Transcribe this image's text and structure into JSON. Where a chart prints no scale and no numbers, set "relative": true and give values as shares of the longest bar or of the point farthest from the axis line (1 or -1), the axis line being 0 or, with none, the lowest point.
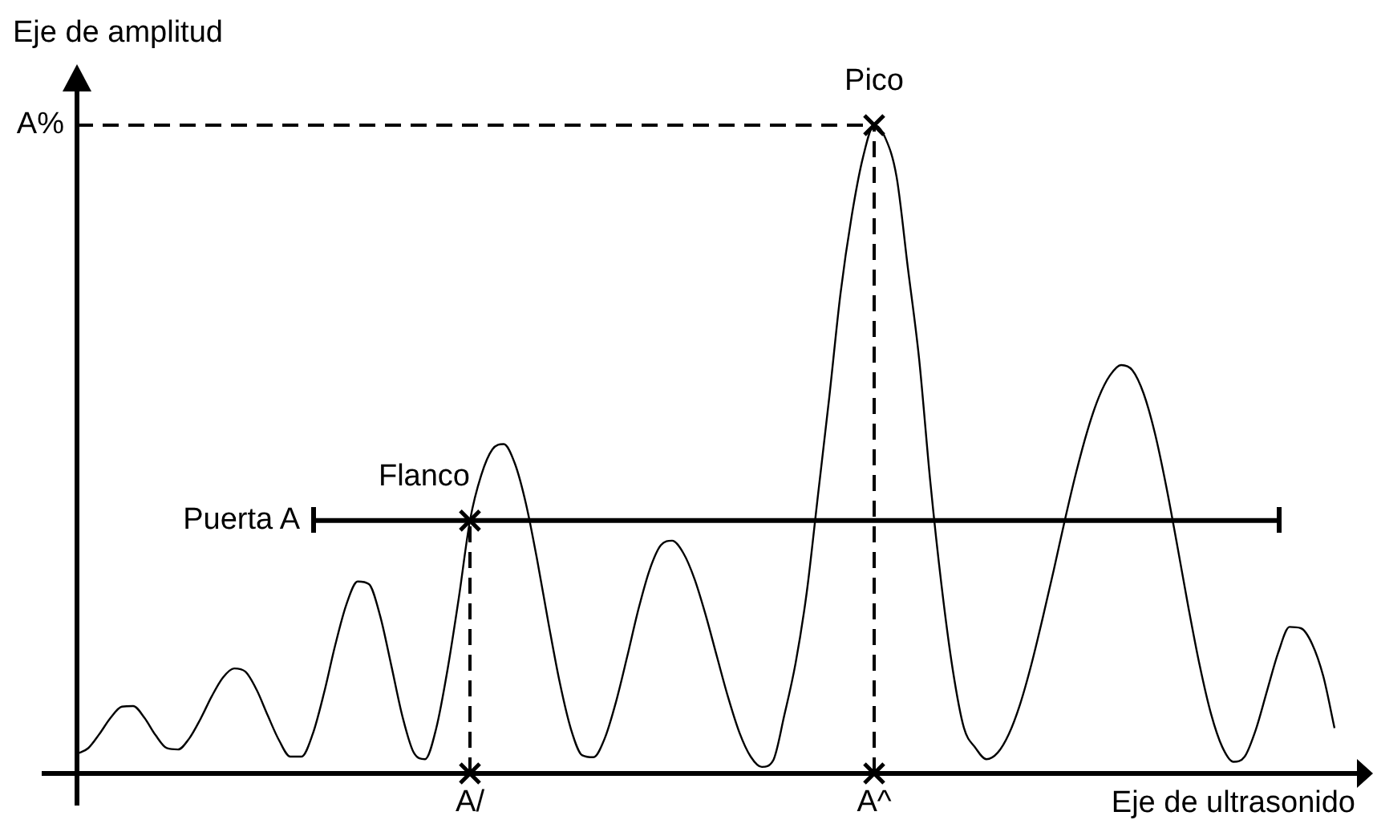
{
  "chart_data": {
    "type": "line",
    "relative": true,
    "xlabel": "Eje de ultrasonido",
    "ylabel": "Eje de amplitud",
    "tick_labels": "x",
    "marker": "none",
    "categories": [
      null,
      null,
      null,
      null,
      null,
      null,
      null,
      null,
      null,
      null,
      null,
      null,
      null,
      null,
      null,
      null,
      null,
      null,
      null,
      null,
      null,
      null,
      null,
      null,
      null,
      null,
      null,
      null,
      null,
      null,
      null,
      null,
      null,
      null,
      null,
      "A/",
      null,
      null,
      null,
      null,
      null,
      null,
      null,
      null,
      null,
      null,
      null,
      null,
      null,
      null,
      null,
      null,
      null,
      null,
      null,
      null,
      null,
      null,
      null,
      null,
      null,
      null,
      null,
      null,
      null,
      null,
      null,
      null,
      null,
      null,
      null,
      "A^",
      null,
      null,
      null,
      null,
      null,
      null,
      null,
      null,
      null,
      null,
      null,
      null,
      null,
      null,
      null,
      null,
      null,
      null,
      null,
      null,
      null,
      null,
      null,
      null,
      null,
      null,
      null,
      null,
      null,
      null,
      null,
      null,
      null,
      null,
      null,
      null,
      null,
      null,
      null,
      null,
      null,
      null,
      null,
      null
    ],
    "series": [
      {
        "color": "#000000",
        "values": [
          0.03,
          0.039,
          0.061,
          0.086,
          0.103,
          0.104,
          0.086,
          0.059,
          0.039,
          0.037,
          0.054,
          0.084,
          0.119,
          0.148,
          0.162,
          0.157,
          0.129,
          0.089,
          0.051,
          0.026,
          0.026,
          0.061,
          0.124,
          0.198,
          0.261,
          0.296,
          0.292,
          0.243,
          0.166,
          0.087,
          0.032,
          0.022,
          0.07,
          0.16,
          0.27,
          0.39,
          0.46,
          0.5,
          0.508,
          0.478,
          0.415,
          0.328,
          0.231,
          0.14,
          0.068,
          0.028,
          0.025,
          0.054,
          0.11,
          0.18,
          0.253,
          0.314,
          0.352,
          0.359,
          0.34,
          0.3,
          0.244,
          0.18,
          0.117,
          0.063,
          0.026,
          0.01,
          0.02,
          0.09,
          0.17,
          0.28,
          0.43,
          0.58,
          0.74,
          0.86,
          0.95,
          1,
          0.98,
          0.92,
          0.78,
          0.64,
          0.45,
          0.29,
          0.16,
          0.07,
          0.04,
          0.022,
          0.032,
          0.061,
          0.107,
          0.168,
          0.239,
          0.314,
          0.392,
          0.465,
          0.529,
          0.58,
          0.614,
          0.63,
          0.622,
          0.586,
          0.525,
          0.444,
          0.351,
          0.255,
          0.166,
          0.092,
          0.041,
          0.018,
          0.026,
          0.068,
          0.128,
          0.187,
          0.226,
          0.224,
          0.2,
          0.15,
          0.07,
          null,
          null,
          null
        ]
      },
      {
        "name": "Puerta A",
        "color": "#000000",
        "values": [
          null,
          null,
          null,
          null,
          null,
          null,
          null,
          null,
          null,
          null,
          null,
          null,
          null,
          null,
          null,
          null,
          null,
          null,
          null,
          null,
          null,
          0.39,
          0.39,
          0.39,
          0.39,
          0.39,
          0.39,
          0.39,
          0.39,
          0.39,
          0.39,
          0.39,
          0.39,
          0.39,
          0.39,
          0.39,
          0.39,
          0.39,
          0.39,
          0.39,
          0.39,
          0.39,
          0.39,
          0.39,
          0.39,
          0.39,
          0.39,
          0.39,
          0.39,
          0.39,
          0.39,
          0.39,
          0.39,
          0.39,
          0.39,
          0.39,
          0.39,
          0.39,
          0.39,
          0.39,
          0.39,
          0.39,
          0.39,
          0.39,
          0.39,
          0.39,
          0.39,
          0.39,
          0.39,
          0.39,
          0.39,
          0.39,
          0.39,
          0.39,
          0.39,
          0.39,
          0.39,
          0.39,
          0.39,
          0.39,
          0.39,
          0.39,
          0.39,
          0.39,
          0.39,
          0.39,
          0.39,
          0.39,
          0.39,
          0.39,
          0.39,
          0.39,
          0.39,
          0.39,
          0.39,
          0.39,
          0.39,
          0.39,
          0.39,
          0.39,
          0.39,
          0.39,
          0.39,
          0.39,
          0.39,
          0.39,
          0.39,
          0.39,
          null,
          null,
          null,
          null,
          null,
          null,
          null,
          null
        ]
      },
      {
        "name": "A%",
        "color": "#000000",
        "line_style": "dashed",
        "values": [
          1,
          1,
          1,
          1,
          1,
          1,
          1,
          1,
          1,
          1,
          1,
          1,
          1,
          1,
          1,
          1,
          1,
          1,
          1,
          1,
          1,
          1,
          1,
          1,
          1,
          1,
          1,
          1,
          1,
          1,
          1,
          1,
          1,
          1,
          1,
          1,
          1,
          1,
          1,
          1,
          1,
          1,
          1,
          1,
          1,
          1,
          1,
          1,
          1,
          1,
          1,
          1,
          1,
          1,
          1,
          1,
          1,
          1,
          1,
          1,
          1,
          1,
          1,
          1,
          1,
          1,
          1,
          1,
          1,
          1,
          1,
          1,
          null,
          null,
          null,
          null,
          null,
          null,
          null,
          null,
          null,
          null,
          null,
          null,
          null,
          null,
          null,
          null,
          null,
          null,
          null,
          null,
          null,
          null,
          null,
          null,
          null,
          null,
          null,
          null,
          null,
          null,
          null,
          null,
          null,
          null,
          null,
          null,
          null,
          null,
          null,
          null,
          null,
          null,
          null,
          null
        ]
      },
      {
        "color": "#000000",
        "line_style": "dashed",
        "x": [
          "A/",
          "A/"
        ],
        "values": [
          0,
          0.39
        ]
      },
      {
        "color": "#000000",
        "line_style": "dashed",
        "x": [
          "A^",
          "A^"
        ],
        "values": [
          0,
          1
        ]
      },
      {
        "type": "scatter",
        "color": "#000000",
        "marker": "cross",
        "x": [
          "A/",
          "A/",
          "A^",
          "A^"
        ],
        "values": [
          0,
          0.39,
          0,
          1
        ]
      }
    ],
    "annotations": [
      {
        "text": "Pico",
        "x": "A^",
        "y": 1
      },
      {
        "text": "Flanco",
        "x": "A/",
        "y": 0.39
      }
    ]
  }
}
